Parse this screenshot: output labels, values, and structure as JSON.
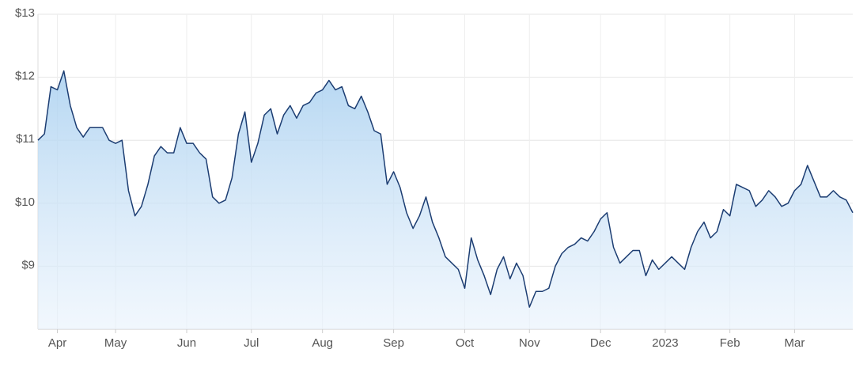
{
  "chart_data": {
    "type": "area",
    "categories": [
      null,
      null,
      null,
      "Apr",
      null,
      null,
      null,
      null,
      null,
      null,
      null,
      null,
      "May",
      null,
      null,
      null,
      null,
      null,
      null,
      null,
      null,
      null,
      null,
      "Jun",
      null,
      null,
      null,
      null,
      null,
      null,
      null,
      null,
      null,
      "Jul",
      null,
      null,
      null,
      null,
      null,
      null,
      null,
      null,
      null,
      null,
      "Aug",
      null,
      null,
      null,
      null,
      null,
      null,
      null,
      null,
      null,
      null,
      "Sep",
      null,
      null,
      null,
      null,
      null,
      null,
      null,
      null,
      null,
      null,
      "Oct",
      null,
      null,
      null,
      null,
      null,
      null,
      null,
      null,
      null,
      "Nov",
      null,
      null,
      null,
      null,
      null,
      null,
      null,
      null,
      null,
      null,
      "Dec",
      null,
      null,
      null,
      null,
      null,
      null,
      null,
      null,
      null,
      "2023",
      null,
      null,
      null,
      null,
      null,
      null,
      null,
      null,
      null,
      "Feb",
      null,
      null,
      null,
      null,
      null,
      null,
      null,
      null,
      null,
      "Mar",
      null,
      null,
      null,
      null,
      null,
      null,
      null,
      null,
      null
    ],
    "values": [
      11.0,
      11.1,
      11.85,
      11.8,
      12.1,
      11.55,
      11.2,
      11.05,
      11.2,
      11.2,
      11.2,
      11.0,
      10.95,
      11.0,
      10.2,
      9.8,
      9.95,
      10.3,
      10.75,
      10.9,
      10.8,
      10.8,
      11.2,
      10.95,
      10.95,
      10.8,
      10.7,
      10.1,
      10.0,
      10.05,
      10.4,
      11.1,
      11.45,
      10.65,
      10.95,
      11.4,
      11.5,
      11.1,
      11.4,
      11.55,
      11.35,
      11.55,
      11.6,
      11.75,
      11.8,
      11.95,
      11.8,
      11.85,
      11.55,
      11.5,
      11.7,
      11.45,
      11.15,
      11.1,
      10.3,
      10.5,
      10.25,
      9.85,
      9.6,
      9.8,
      10.1,
      9.7,
      9.45,
      9.15,
      9.05,
      8.95,
      8.65,
      9.45,
      9.1,
      8.85,
      8.55,
      8.95,
      9.15,
      8.8,
      9.05,
      8.85,
      8.35,
      8.6,
      8.6,
      8.65,
      9.0,
      9.2,
      9.3,
      9.35,
      9.45,
      9.4,
      9.55,
      9.75,
      9.85,
      9.3,
      9.05,
      9.15,
      9.25,
      9.25,
      8.85,
      9.1,
      8.95,
      9.05,
      9.15,
      9.05,
      8.95,
      9.3,
      9.55,
      9.7,
      9.45,
      9.55,
      9.9,
      9.8,
      10.3,
      10.25,
      10.2,
      9.95,
      10.05,
      10.2,
      10.1,
      9.95,
      10.0,
      10.2,
      10.3,
      10.6,
      10.35,
      10.1,
      10.1,
      10.2,
      10.1,
      10.05,
      9.85
    ],
    "color": "#1c3d72",
    "ylim": [
      8,
      13
    ],
    "yticks": [
      {
        "value": 9,
        "label": "$9"
      },
      {
        "value": 10,
        "label": "$10"
      },
      {
        "value": 11,
        "label": "$11"
      },
      {
        "value": 12,
        "label": "$12"
      },
      {
        "value": 13,
        "label": "$13"
      }
    ],
    "grid": true
  }
}
